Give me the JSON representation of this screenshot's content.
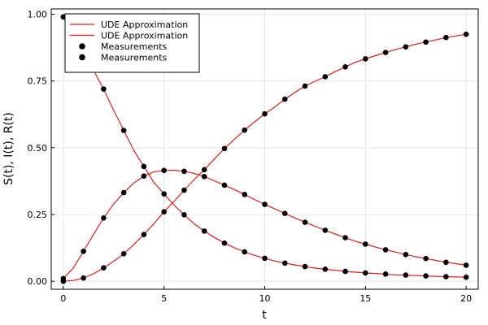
{
  "chart_data": {
    "type": "line",
    "xlabel": "t",
    "ylabel": "S(t), I(t), R(t)",
    "xlim": [
      -0.6,
      20.6
    ],
    "ylim": [
      -0.03,
      1.02
    ],
    "x_ticks": [
      0,
      5,
      10,
      15,
      20
    ],
    "y_ticks": [
      0.0,
      0.25,
      0.5,
      0.75,
      1.0
    ],
    "x_tick_labels": [
      "0",
      "5",
      "10",
      "15",
      "20"
    ],
    "y_tick_labels": [
      "0.00",
      "0.25",
      "0.50",
      "0.75",
      "1.00"
    ],
    "grid": true,
    "legend_position": "top-left",
    "line_color": "#e0201b",
    "marker_color": "#000000",
    "series": [
      {
        "kind": "line",
        "legend": "UDE Approximation",
        "x": [
          0,
          0.5,
          1,
          1.5,
          2,
          2.5,
          3,
          3.5,
          4,
          4.5,
          5,
          5.5,
          6,
          6.5,
          7,
          7.5,
          8,
          8.5,
          9,
          9.5,
          10,
          10.5,
          11,
          11.5,
          12,
          12.5,
          13,
          13.5,
          14,
          14.5,
          15,
          15.5,
          16,
          16.5,
          17,
          17.5,
          18,
          18.5,
          19,
          19.5,
          20
        ],
        "y": [
          0.99,
          0.93,
          0.85,
          0.79,
          0.72,
          0.64,
          0.565,
          0.49,
          0.43,
          0.37,
          0.327,
          0.285,
          0.249,
          0.215,
          0.188,
          0.164,
          0.143,
          0.125,
          0.11,
          0.097,
          0.086,
          0.076,
          0.068,
          0.061,
          0.055,
          0.049,
          0.045,
          0.041,
          0.037,
          0.034,
          0.031,
          0.029,
          0.027,
          0.024,
          0.023,
          0.021,
          0.02,
          0.018,
          0.017,
          0.016,
          0.015
        ]
      },
      {
        "kind": "line",
        "legend": "UDE Approximation",
        "x": [
          0,
          0.5,
          1,
          1.5,
          2,
          2.5,
          3,
          3.5,
          4,
          4.5,
          5,
          5.5,
          6,
          6.5,
          7,
          7.5,
          8,
          8.5,
          9,
          9.5,
          10,
          10.5,
          11,
          11.5,
          12,
          12.5,
          13,
          13.5,
          14,
          14.5,
          15,
          15.5,
          16,
          16.5,
          17,
          17.5,
          18,
          18.5,
          19,
          19.5,
          20
        ],
        "y": [
          0.01,
          0.05,
          0.112,
          0.175,
          0.237,
          0.29,
          0.332,
          0.368,
          0.394,
          0.41,
          0.415,
          0.416,
          0.412,
          0.404,
          0.392,
          0.376,
          0.36,
          0.343,
          0.325,
          0.306,
          0.288,
          0.271,
          0.254,
          0.237,
          0.221,
          0.206,
          0.191,
          0.177,
          0.163,
          0.15,
          0.139,
          0.128,
          0.118,
          0.109,
          0.1,
          0.092,
          0.085,
          0.078,
          0.071,
          0.066,
          0.06
        ]
      },
      {
        "kind": "scatter",
        "legend": "Measurements",
        "x": [
          0,
          1,
          2,
          3,
          4,
          5,
          6,
          7,
          8,
          9,
          10,
          11,
          12,
          13,
          14,
          15,
          16,
          17,
          18,
          19,
          20
        ],
        "y": [
          0.99,
          0.85,
          0.72,
          0.565,
          0.43,
          0.327,
          0.249,
          0.188,
          0.143,
          0.11,
          0.086,
          0.068,
          0.055,
          0.045,
          0.037,
          0.031,
          0.027,
          0.023,
          0.02,
          0.017,
          0.015
        ]
      },
      {
        "kind": "scatter",
        "legend": "Measurements",
        "x": [
          0,
          1,
          2,
          3,
          4,
          5,
          6,
          7,
          8,
          9,
          10,
          11,
          12,
          13,
          14,
          15,
          16,
          17,
          18,
          19,
          20
        ],
        "y": [
          0.01,
          0.112,
          0.237,
          0.332,
          0.394,
          0.415,
          0.412,
          0.392,
          0.36,
          0.325,
          0.288,
          0.254,
          0.221,
          0.191,
          0.163,
          0.139,
          0.118,
          0.1,
          0.085,
          0.071,
          0.06
        ]
      },
      {
        "kind": "line",
        "legend": "",
        "x": [
          0,
          0.5,
          1,
          1.5,
          2,
          2.5,
          3,
          3.5,
          4,
          4.5,
          5,
          5.5,
          6,
          6.5,
          7,
          7.5,
          8,
          8.5,
          9,
          9.5,
          10,
          10.5,
          11,
          11.5,
          12,
          12.5,
          13,
          13.5,
          14,
          14.5,
          15,
          15.5,
          16,
          16.5,
          17,
          17.5,
          18,
          18.5,
          19,
          19.5,
          20
        ],
        "y": [
          0,
          0.003,
          0.012,
          0.028,
          0.05,
          0.075,
          0.103,
          0.137,
          0.175,
          0.216,
          0.26,
          0.3,
          0.341,
          0.381,
          0.418,
          0.458,
          0.497,
          0.532,
          0.566,
          0.597,
          0.627,
          0.653,
          0.682,
          0.707,
          0.731,
          0.749,
          0.766,
          0.785,
          0.803,
          0.82,
          0.833,
          0.845,
          0.857,
          0.868,
          0.878,
          0.888,
          0.896,
          0.904,
          0.913,
          0.919,
          0.925
        ]
      },
      {
        "kind": "scatter",
        "legend": "",
        "x": [
          0,
          1,
          2,
          3,
          4,
          5,
          6,
          7,
          8,
          9,
          10,
          11,
          12,
          13,
          14,
          15,
          16,
          17,
          18,
          19,
          20
        ],
        "y": [
          0,
          0.012,
          0.05,
          0.103,
          0.175,
          0.26,
          0.341,
          0.418,
          0.497,
          0.566,
          0.627,
          0.682,
          0.731,
          0.766,
          0.803,
          0.833,
          0.857,
          0.878,
          0.896,
          0.913,
          0.925
        ]
      }
    ]
  }
}
